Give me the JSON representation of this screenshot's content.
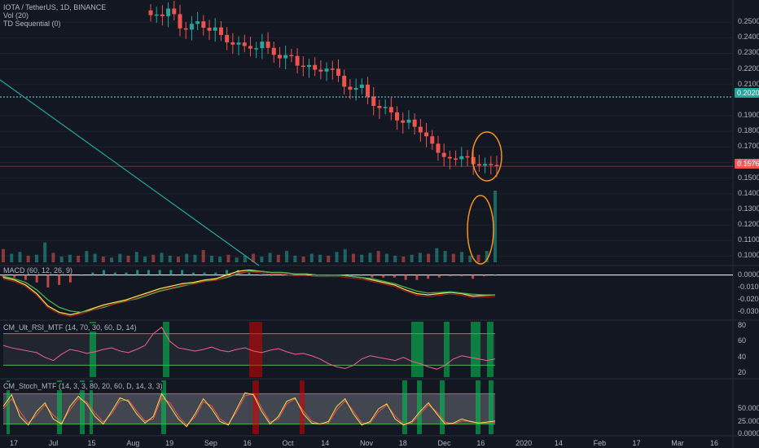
{
  "header": {
    "symbol": "IOTA / TetherUS, 1D, BINANCE",
    "vol": "Vol (20)",
    "td": "TD Sequential (0)"
  },
  "indicators": {
    "macd": "MACD (60, 12, 26, 9)",
    "rsi": "CM_Ult_RSI_MTF (14, 70, 30, 60, D, 14)",
    "stoch": "CM_Stoch_MTF (14, 3, 3, 80, 20, 60, D, 14, 3, 3)"
  },
  "price_tags": {
    "resistance": "0.2020",
    "current": "0.1576"
  },
  "colors": {
    "background": "#131722",
    "up": "#26a69a",
    "down": "#ef5350",
    "resistance_line": "#4dd0e1",
    "current_line": "#ef5350",
    "trendline": "#26a69a",
    "highlight": "#f7931a",
    "macd_line": "#f5e04c",
    "signal_line": "#4caf50"
  },
  "chart_data": [
    {
      "type": "candlestick",
      "title": "IOTA / TetherUS, 1D, BINANCE",
      "xlabel": "",
      "ylabel": "",
      "x_ticks": [
        "17",
        "Jul",
        "15",
        "Aug",
        "19",
        "Sep",
        "16",
        "Oct",
        "14",
        "Nov",
        "18",
        "Dec",
        "16",
        "2020",
        "14",
        "Feb",
        "17",
        "Mar",
        "16"
      ],
      "y_ticks": [
        "0.2500",
        "0.2400",
        "0.2300",
        "0.2200",
        "0.2100",
        "0.1900",
        "0.1800",
        "0.1700",
        "0.1600",
        "0.1500",
        "0.1400",
        "0.1300",
        "0.1200",
        "0.1100",
        "0.1000"
      ],
      "ylim": [
        0.095,
        0.26
      ],
      "series": [
        {
          "name": "",
          "values": [
            0.2545,
            0.2549,
            0.2538,
            0.2587,
            0.2551,
            0.246,
            0.2452,
            0.2489,
            0.2505,
            0.2464,
            0.2445,
            0.2466,
            0.2418,
            0.237,
            0.2356,
            0.2369,
            0.2347,
            0.233,
            0.2333,
            0.2375,
            0.2335,
            0.229,
            0.2268,
            0.2289,
            0.2283,
            0.2221,
            0.2213,
            0.2225,
            0.2195,
            0.2183,
            0.2202,
            0.2201,
            0.2156,
            0.2086,
            0.2067,
            0.2078,
            0.2099,
            0.2023,
            0.1963,
            0.1949,
            0.1956,
            0.1921,
            0.187,
            0.1855,
            0.1875,
            0.1829,
            0.1793,
            0.1768,
            0.1721,
            0.1662,
            0.1636,
            0.1626,
            0.1621,
            0.164,
            0.1635,
            0.159,
            0.158,
            0.1591,
            0.1584,
            0.1576
          ]
        }
      ],
      "horizontal_lines": [
        0.202,
        0.1576
      ]
    },
    {
      "type": "bar",
      "title": "Vol (20)",
      "values": [
        14,
        9,
        11,
        7,
        8,
        21,
        10,
        6,
        8,
        7,
        12,
        9,
        6,
        5,
        9,
        7,
        11,
        6,
        8,
        10,
        7,
        6,
        9,
        8,
        13,
        7,
        6,
        8,
        5,
        7,
        9,
        6,
        10,
        8,
        12,
        7,
        6,
        9,
        8,
        7,
        11,
        14,
        9,
        8,
        10,
        12,
        9,
        7,
        6,
        8,
        10,
        9,
        15,
        12,
        9,
        11,
        7,
        8,
        12,
        76
      ]
    },
    {
      "type": "line",
      "title": "MACD (60, 12, 26, 9)",
      "y_ticks": [
        "0.0000",
        "-0.0100",
        "-0.0200",
        "-0.0300"
      ],
      "ylim": [
        -0.035,
        0.005
      ],
      "series": [
        {
          "name": "",
          "values": [
            -0.002,
            -0.004,
            -0.008,
            -0.015,
            -0.025,
            -0.03,
            -0.032,
            -0.03,
            -0.027,
            -0.024,
            -0.022,
            -0.02,
            -0.017,
            -0.014,
            -0.011,
            -0.009,
            -0.007,
            -0.006,
            -0.004,
            -0.003,
            0.0,
            0.003,
            0.004,
            0.003,
            0.002,
            0.002,
            0.001,
            0.001,
            0.0,
            0.0,
            0.0,
            -0.001,
            -0.002,
            -0.004,
            -0.006,
            -0.008,
            -0.012,
            -0.015,
            -0.016,
            -0.015,
            -0.014,
            -0.015,
            -0.017,
            -0.0165,
            -0.016
          ]
        },
        {
          "name": "",
          "values": [
            -0.001,
            -0.003,
            -0.006,
            -0.012,
            -0.02,
            -0.026,
            -0.029,
            -0.03,
            -0.028,
            -0.026,
            -0.023,
            -0.021,
            -0.019,
            -0.016,
            -0.013,
            -0.011,
            -0.009,
            -0.007,
            -0.005,
            -0.004,
            -0.002,
            0.001,
            0.003,
            0.003,
            0.002,
            0.002,
            0.001,
            0.001,
            0.0,
            0.0,
            0.0,
            -0.001,
            -0.002,
            -0.003,
            -0.005,
            -0.007,
            -0.01,
            -0.013,
            -0.0145,
            -0.014,
            -0.0135,
            -0.0145,
            -0.0155,
            -0.016,
            -0.016
          ]
        }
      ]
    },
    {
      "type": "line",
      "title": "CM_Ult_RSI_MTF (14, 70, 30, 60, D, 14)",
      "y_ticks": [
        "80",
        "60",
        "40",
        "20"
      ],
      "ylim": [
        15,
        85
      ],
      "reference_lines": [
        70,
        30
      ],
      "series": [
        {
          "name": "",
          "values": [
            55,
            52,
            50,
            48,
            46,
            40,
            36,
            44,
            50,
            48,
            45,
            47,
            50,
            52,
            48,
            46,
            50,
            55,
            70,
            78,
            60,
            52,
            50,
            48,
            50,
            53,
            49,
            47,
            50,
            52,
            48,
            46,
            49,
            51,
            47,
            44,
            45,
            42,
            38,
            32,
            28,
            26,
            30,
            38,
            42,
            40,
            38,
            36,
            40,
            35,
            32,
            28,
            25,
            30,
            38,
            42,
            40,
            38,
            36,
            38
          ]
        }
      ]
    },
    {
      "type": "line",
      "title": "CM_Stoch_MTF (14, 3, 3, 80, 20, 60, D, 14, 3, 3)",
      "y_ticks": [
        "50.0000",
        "25.0000",
        "0.0000"
      ],
      "ylim": [
        0,
        100
      ],
      "reference_lines": [
        80,
        20
      ],
      "series": [
        {
          "name": "",
          "values": [
            55,
            78,
            35,
            18,
            45,
            62,
            30,
            20,
            55,
            75,
            60,
            35,
            20,
            45,
            72,
            65,
            40,
            22,
            35,
            80,
            55,
            30,
            15,
            40,
            70,
            50,
            25,
            18,
            50,
            82,
            78,
            45,
            20,
            35,
            65,
            72,
            40,
            22,
            20,
            25,
            55,
            70,
            40,
            18,
            25,
            50,
            60,
            30,
            18,
            25,
            45,
            62,
            40,
            20,
            22,
            30,
            25,
            22,
            24,
            26
          ]
        },
        {
          "name": "",
          "values": [
            50,
            70,
            45,
            22,
            38,
            58,
            38,
            22,
            48,
            70,
            64,
            42,
            24,
            40,
            66,
            68,
            46,
            26,
            30,
            72,
            62,
            36,
            18,
            34,
            64,
            56,
            30,
            20,
            44,
            76,
            80,
            52,
            24,
            30,
            60,
            70,
            46,
            26,
            20,
            22,
            48,
            66,
            46,
            22,
            22,
            44,
            58,
            36,
            20,
            22,
            40,
            58,
            44,
            24,
            20,
            26,
            26,
            22,
            22,
            24
          ]
        }
      ]
    }
  ]
}
